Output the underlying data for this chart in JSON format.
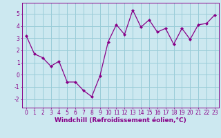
{
  "x": [
    0,
    1,
    2,
    3,
    4,
    5,
    6,
    7,
    8,
    9,
    10,
    11,
    12,
    13,
    14,
    15,
    16,
    17,
    18,
    19,
    20,
    21,
    22,
    23
  ],
  "y": [
    3.2,
    1.7,
    1.4,
    0.7,
    1.1,
    -0.6,
    -0.6,
    -1.3,
    -1.8,
    -0.1,
    2.7,
    4.1,
    3.3,
    5.3,
    3.9,
    4.5,
    3.5,
    3.8,
    2.5,
    3.8,
    2.9,
    4.1,
    4.2,
    4.9
  ],
  "line_color": "#880088",
  "marker": "D",
  "marker_size": 2.0,
  "linewidth": 0.9,
  "xlabel": "Windchill (Refroidissement éolien,°C)",
  "xlim": [
    -0.5,
    23.5
  ],
  "ylim": [
    -2.7,
    5.9
  ],
  "yticks": [
    -2,
    -1,
    0,
    1,
    2,
    3,
    4,
    5
  ],
  "xticks": [
    0,
    1,
    2,
    3,
    4,
    5,
    6,
    7,
    8,
    9,
    10,
    11,
    12,
    13,
    14,
    15,
    16,
    17,
    18,
    19,
    20,
    21,
    22,
    23
  ],
  "background_color": "#cce8f0",
  "grid_color": "#99ccd8",
  "tick_label_size": 5.5,
  "xlabel_size": 6.5
}
